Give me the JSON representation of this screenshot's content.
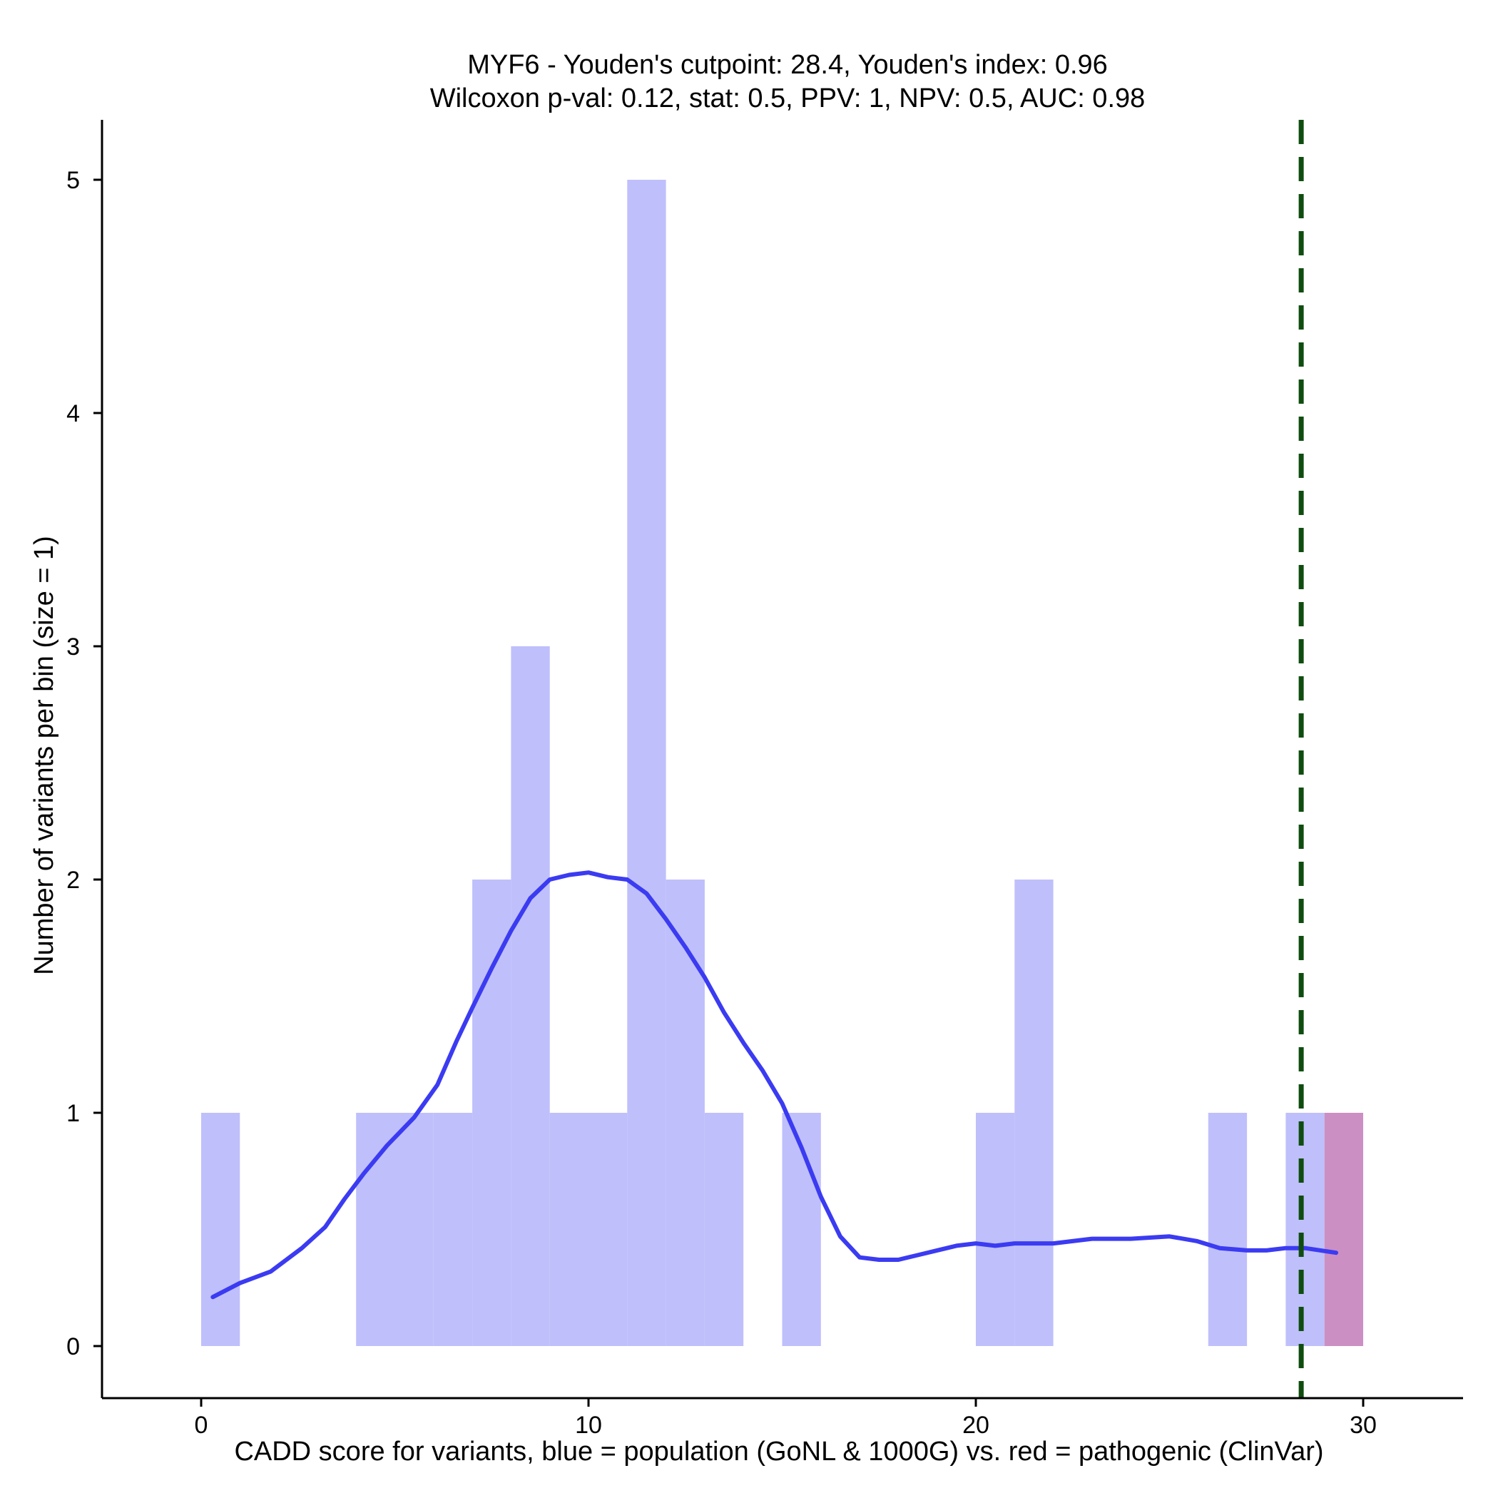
{
  "chart_data": {
    "type": "bar",
    "title": "MYF6 - Youden's cutpoint: 28.4, Youden's index: 0.96",
    "subtitle": "Wilcoxon p-val: 0.12, stat: 0.5, PPV: 1, NPV: 0.5, AUC: 0.98",
    "xlabel": "CADD score for variants, blue = population (GoNL & 1000G) vs. red = pathogenic (ClinVar)",
    "ylabel": "Number of variants per bin (size = 1)",
    "xlim": [
      -2.6,
      32.6
    ],
    "ylim": [
      -0.25,
      5.25
    ],
    "x_ticks": [
      0,
      10,
      20,
      30
    ],
    "y_ticks": [
      0,
      1,
      2,
      3,
      4,
      5
    ],
    "bin_width": 1,
    "series": [
      {
        "colour": "#bfbffc",
        "bins": [
          {
            "x0": 0,
            "x1": 1,
            "count": 1
          },
          {
            "x0": 4,
            "x1": 5,
            "count": 1
          },
          {
            "x0": 5,
            "x1": 6,
            "count": 1
          },
          {
            "x0": 6,
            "x1": 7,
            "count": 1
          },
          {
            "x0": 7,
            "x1": 8,
            "count": 2
          },
          {
            "x0": 8,
            "x1": 9,
            "count": 3
          },
          {
            "x0": 9,
            "x1": 10,
            "count": 1
          },
          {
            "x0": 10,
            "x1": 11,
            "count": 1
          },
          {
            "x0": 11,
            "x1": 12,
            "count": 5
          },
          {
            "x0": 12,
            "x1": 13,
            "count": 2
          },
          {
            "x0": 13,
            "x1": 14,
            "count": 1
          },
          {
            "x0": 15,
            "x1": 16,
            "count": 1
          },
          {
            "x0": 20,
            "x1": 21,
            "count": 1
          },
          {
            "x0": 21,
            "x1": 22,
            "count": 2
          },
          {
            "x0": 26,
            "x1": 27,
            "count": 1
          },
          {
            "x0": 28,
            "x1": 29,
            "count": 1
          }
        ]
      },
      {
        "colour": "#cc8fc3",
        "bins": [
          {
            "x0": 29,
            "x1": 30,
            "count": 1
          }
        ]
      }
    ],
    "density_curve": {
      "colour": "#3b3bf2",
      "points": [
        [
          0.3,
          0.21
        ],
        [
          1.0,
          0.27
        ],
        [
          1.8,
          0.32
        ],
        [
          2.6,
          0.42
        ],
        [
          3.2,
          0.51
        ],
        [
          3.7,
          0.63
        ],
        [
          4.2,
          0.74
        ],
        [
          4.8,
          0.86
        ],
        [
          5.5,
          0.98
        ],
        [
          6.1,
          1.12
        ],
        [
          6.6,
          1.31
        ],
        [
          7.0,
          1.45
        ],
        [
          7.5,
          1.62
        ],
        [
          8.0,
          1.78
        ],
        [
          8.5,
          1.92
        ],
        [
          9.0,
          2.0
        ],
        [
          9.5,
          2.02
        ],
        [
          10.0,
          2.03
        ],
        [
          10.5,
          2.01
        ],
        [
          11.0,
          2.0
        ],
        [
          11.5,
          1.94
        ],
        [
          12.0,
          1.83
        ],
        [
          12.5,
          1.71
        ],
        [
          13.0,
          1.58
        ],
        [
          13.5,
          1.43
        ],
        [
          14.0,
          1.3
        ],
        [
          14.5,
          1.18
        ],
        [
          15.0,
          1.04
        ],
        [
          15.5,
          0.85
        ],
        [
          16.0,
          0.64
        ],
        [
          16.5,
          0.47
        ],
        [
          17.0,
          0.38
        ],
        [
          17.5,
          0.37
        ],
        [
          18.0,
          0.37
        ],
        [
          18.5,
          0.39
        ],
        [
          19.0,
          0.41
        ],
        [
          19.5,
          0.43
        ],
        [
          20.0,
          0.44
        ],
        [
          20.5,
          0.43
        ],
        [
          21.0,
          0.44
        ],
        [
          22.0,
          0.44
        ],
        [
          23.0,
          0.46
        ],
        [
          24.0,
          0.46
        ],
        [
          25.0,
          0.47
        ],
        [
          25.7,
          0.45
        ],
        [
          26.3,
          0.42
        ],
        [
          27.0,
          0.41
        ],
        [
          27.5,
          0.41
        ],
        [
          28.0,
          0.42
        ],
        [
          28.5,
          0.42
        ],
        [
          29.3,
          0.4
        ]
      ]
    },
    "cutpoint_line": {
      "x": 28.4,
      "colour": "#0f4d0f",
      "style": "dashed"
    },
    "grid": false,
    "legend": "none"
  }
}
